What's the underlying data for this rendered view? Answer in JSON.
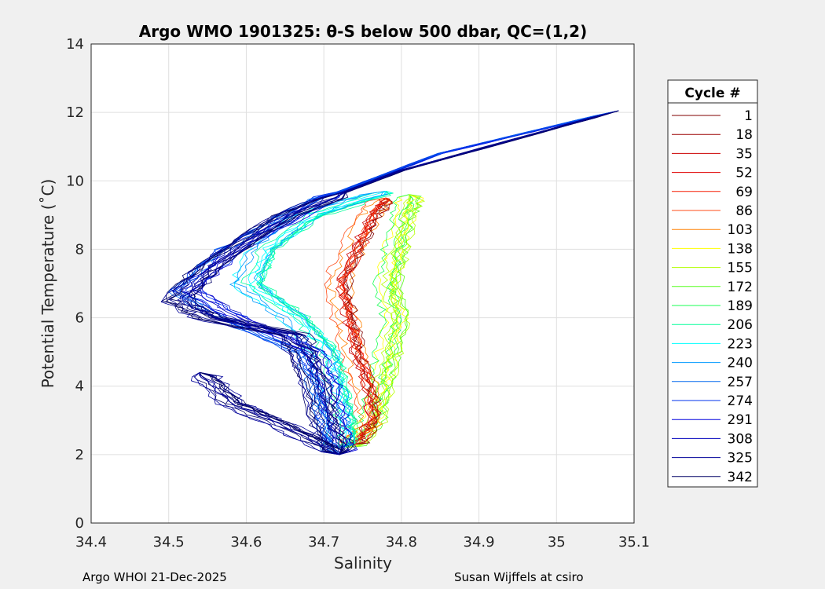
{
  "chart_data": {
    "type": "line",
    "title": "Argo WMO 1901325: θ-S below 500 dbar,  QC=(1,2)",
    "xlabel": "Salinity",
    "ylabel": "Potential Temperature (˚C)",
    "xlim": [
      34.4,
      35.1
    ],
    "ylim": [
      0,
      14
    ],
    "xticks": [
      "34.4",
      "34.5",
      "34.6",
      "34.7",
      "34.8",
      "34.9",
      "35",
      "35.1"
    ],
    "xtick_values": [
      34.4,
      34.5,
      34.6,
      34.7,
      34.8,
      34.9,
      35.0,
      35.1
    ],
    "yticks": [
      "0",
      "2",
      "4",
      "6",
      "8",
      "10",
      "12",
      "14"
    ],
    "ytick_values": [
      0,
      2,
      4,
      6,
      8,
      10,
      12,
      14
    ],
    "grid": true,
    "legend": {
      "title": "Cycle #",
      "placement": "right-outside",
      "entries": [
        {
          "label": "1",
          "color": "#800000"
        },
        {
          "label": "18",
          "color": "#9a0000"
        },
        {
          "label": "35",
          "color": "#cc0000"
        },
        {
          "label": "52",
          "color": "#e00000"
        },
        {
          "label": "69",
          "color": "#f51a00"
        },
        {
          "label": "86",
          "color": "#ff4d1a"
        },
        {
          "label": "103",
          "color": "#ff8000"
        },
        {
          "label": "138",
          "color": "#ffff00"
        },
        {
          "label": "155",
          "color": "#b3ff00"
        },
        {
          "label": "172",
          "color": "#55ff1a"
        },
        {
          "label": "189",
          "color": "#1aff55"
        },
        {
          "label": "206",
          "color": "#00ff99"
        },
        {
          "label": "223",
          "color": "#00ffff"
        },
        {
          "label": "240",
          "color": "#0099ff"
        },
        {
          "label": "257",
          "color": "#0066ee"
        },
        {
          "label": "274",
          "color": "#0033ee"
        },
        {
          "label": "291",
          "color": "#0000dd"
        },
        {
          "label": "308",
          "color": "#0000bb"
        },
        {
          "label": "325",
          "color": "#000099"
        },
        {
          "label": "342",
          "color": "#000066"
        }
      ]
    },
    "profiles": [
      {
        "group": "yellow-green",
        "colors": [
          "#ffff00",
          "#b3ff00",
          "#55ff1a",
          "#1aff55"
        ],
        "s": [
          34.73,
          34.76,
          34.77,
          34.78,
          34.79,
          34.78,
          34.79,
          34.8,
          34.81
        ],
        "t": [
          2.2,
          3.0,
          4.0,
          5.0,
          6.0,
          7.0,
          8.0,
          9.0,
          9.6
        ]
      },
      {
        "group": "red-orange",
        "colors": [
          "#800000",
          "#cc0000",
          "#f51a00",
          "#ff4d1a",
          "#ff8000"
        ],
        "s": [
          34.74,
          34.76,
          34.755,
          34.74,
          34.73,
          34.72,
          34.74,
          34.76,
          34.78
        ],
        "t": [
          2.3,
          3.0,
          4.0,
          5.0,
          6.0,
          7.0,
          8.0,
          9.0,
          9.5
        ]
      },
      {
        "group": "cyan",
        "colors": [
          "#00ff99",
          "#00ffff",
          "#0099ff"
        ],
        "s": [
          34.72,
          34.72,
          34.71,
          34.7,
          34.66,
          34.6,
          34.62,
          34.68,
          34.78
        ],
        "t": [
          2.2,
          3.0,
          4.0,
          5.0,
          6.0,
          7.0,
          8.0,
          9.0,
          9.7
        ]
      },
      {
        "group": "blue",
        "colors": [
          "#0066ee",
          "#0033ee",
          "#0000dd",
          "#0000bb"
        ],
        "s": [
          34.72,
          34.71,
          34.7,
          34.68,
          34.58,
          34.52,
          34.58,
          34.7,
          34.85,
          35.08
        ],
        "t": [
          2.0,
          3.0,
          4.0,
          5.0,
          6.0,
          6.8,
          8.0,
          9.5,
          10.8,
          12.05
        ]
      },
      {
        "group": "dark-blue",
        "colors": [
          "#000099",
          "#000066"
        ],
        "s": [
          34.72,
          34.7,
          34.68,
          34.66,
          34.55,
          34.51,
          34.55,
          34.65,
          34.8,
          35.08
        ],
        "t": [
          2.0,
          3.0,
          4.5,
          5.5,
          6.0,
          6.5,
          7.5,
          9.0,
          10.3,
          12.05
        ]
      },
      {
        "group": "dark-blue-low",
        "colors": [
          "#000066",
          "#000099"
        ],
        "s": [
          34.72,
          34.65,
          34.58,
          34.54
        ],
        "t": [
          2.0,
          2.8,
          3.5,
          4.4
        ]
      }
    ]
  },
  "footer": {
    "left": "Argo WHOI 21-Dec-2025",
    "right": "Susan Wijffels at csiro"
  }
}
